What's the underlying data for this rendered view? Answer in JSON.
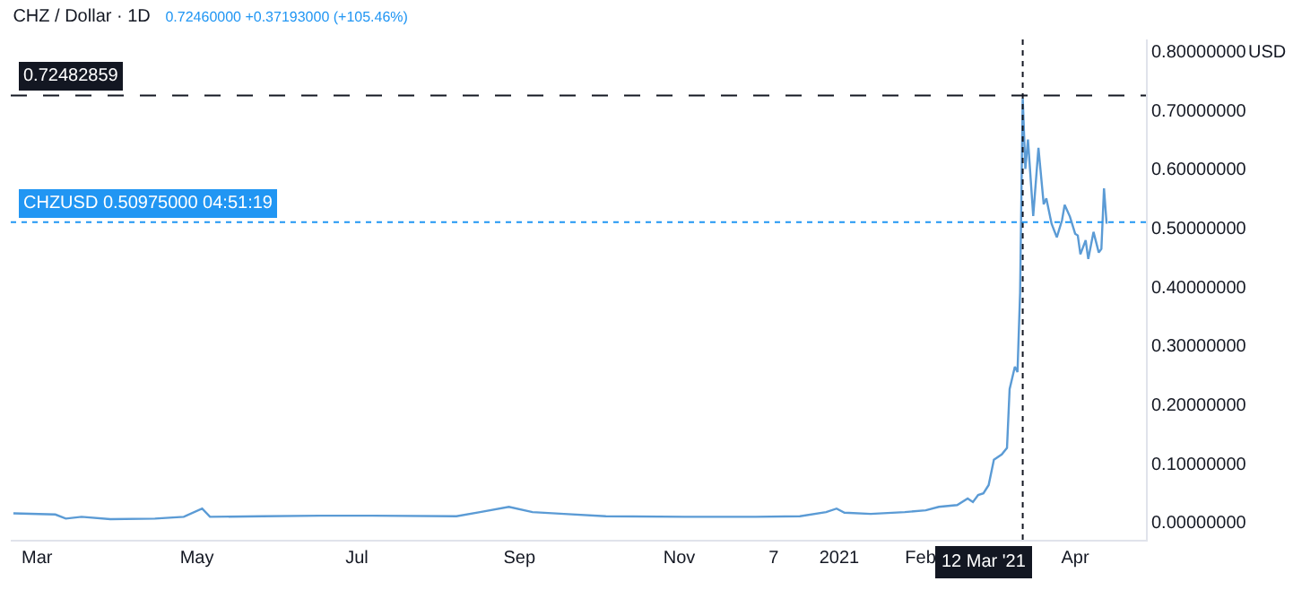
{
  "chart_data": {
    "type": "line",
    "title": "CHZ / Dollar · 1D",
    "subtitle": "0.72460000 +0.37193000 (+105.46%)",
    "annotations": [
      "USD"
    ],
    "x": [
      "2020-02-21",
      "2020-03-08",
      "2020-03-12",
      "2020-03-18",
      "2020-03-29",
      "2020-04-15",
      "2020-04-26",
      "2020-05-03",
      "2020-05-06",
      "2020-05-26",
      "2020-06-17",
      "2020-07-07",
      "2020-08-08",
      "2020-08-17",
      "2020-08-28",
      "2020-09-06",
      "2020-09-18",
      "2020-10-04",
      "2020-11-04",
      "2020-11-30",
      "2020-12-17",
      "2020-12-27",
      "2020-12-31",
      "2021-01-03",
      "2021-01-13",
      "2021-01-26",
      "2021-02-03",
      "2021-02-08",
      "2021-02-15",
      "2021-02-19",
      "2021-02-21",
      "2021-02-23",
      "2021-02-25",
      "2021-02-27",
      "2021-03-01",
      "2021-03-04",
      "2021-03-06",
      "2021-03-07",
      "2021-03-09",
      "2021-03-10",
      "2021-03-11",
      "2021-03-12",
      "2021-03-13",
      "2021-03-14",
      "2021-03-16",
      "2021-03-18",
      "2021-03-20",
      "2021-03-21",
      "2021-03-23",
      "2021-03-25",
      "2021-03-27",
      "2021-03-28",
      "2021-03-30",
      "2021-04-01",
      "2021-04-02",
      "2021-04-03",
      "2021-04-05",
      "2021-04-06",
      "2021-04-08",
      "2021-04-10",
      "2021-04-11",
      "2021-04-12",
      "2021-04-13"
    ],
    "series": [
      {
        "color": "#5b9bd5",
        "values": [
          0.015,
          0.013,
          0.006,
          0.009,
          0.005,
          0.006,
          0.009,
          0.023,
          0.009,
          0.01,
          0.011,
          0.011,
          0.01,
          0.017,
          0.026,
          0.017,
          0.014,
          0.01,
          0.009,
          0.009,
          0.01,
          0.017,
          0.023,
          0.016,
          0.014,
          0.017,
          0.02,
          0.026,
          0.029,
          0.04,
          0.034,
          0.046,
          0.049,
          0.063,
          0.106,
          0.115,
          0.126,
          0.226,
          0.264,
          0.255,
          0.39,
          0.72,
          0.6,
          0.65,
          0.52,
          0.636,
          0.54,
          0.55,
          0.507,
          0.484,
          0.513,
          0.539,
          0.519,
          0.49,
          0.487,
          0.455,
          0.479,
          0.447,
          0.493,
          0.458,
          0.464,
          0.567,
          0.507
        ]
      }
    ],
    "xlim": [
      "2020-02-20",
      "2021-04-28"
    ],
    "xticks": [
      {
        "value": "2020-03-01",
        "label": "Mar"
      },
      {
        "value": "2020-05-01",
        "label": "May"
      },
      {
        "value": "2020-07-01",
        "label": "Jul"
      },
      {
        "value": "2020-09-01",
        "label": "Sep"
      },
      {
        "value": "2020-11-01",
        "label": "Nov"
      },
      {
        "value": "2020-12-07",
        "label": "7"
      },
      {
        "value": "2021-01-01",
        "label": "2021"
      },
      {
        "value": "2021-02-01",
        "label": "Feb"
      },
      {
        "value": "2021-04-01",
        "label": "Apr"
      }
    ],
    "ylim": [
      -0.03,
      0.82
    ],
    "yticks": [
      {
        "value": 0,
        "label": "0.00000000"
      },
      {
        "value": 0.1,
        "label": "0.10000000"
      },
      {
        "value": 0.2,
        "label": "0.20000000"
      },
      {
        "value": 0.3,
        "label": "0.30000000"
      },
      {
        "value": 0.4,
        "label": "0.40000000"
      },
      {
        "value": 0.5,
        "label": "0.50000000"
      },
      {
        "value": 0.6,
        "label": "0.60000000"
      },
      {
        "value": 0.7,
        "label": "0.70000000"
      },
      {
        "value": 0.8,
        "label": "0.80000000"
      }
    ],
    "ref_lines": [
      {
        "axis": "x",
        "value": "2021-03-12",
        "label": "12 Mar '21",
        "color": "#131722",
        "line_style": "dotted"
      },
      {
        "axis": "y",
        "value": 0.72482859,
        "label": "0.72482859",
        "color": "#131722",
        "line_style": "dashed"
      },
      {
        "axis": "y",
        "value": 0.50975,
        "label": "CHZUSD 0.50975000 04:51:19",
        "color": "#2196f3",
        "line_style": "dotted"
      }
    ],
    "grid": false,
    "marker": "none",
    "line_style": "solid"
  }
}
